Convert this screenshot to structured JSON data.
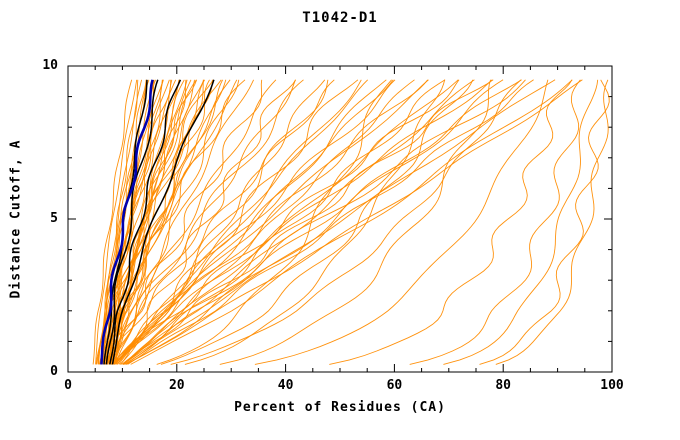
{
  "chart_data": {
    "type": "line",
    "title": "T1042-D1",
    "xlabel": "Percent of Residues (CA)",
    "ylabel": "Distance Cutoff, A",
    "xlim": [
      0,
      100
    ],
    "ylim": [
      0,
      10
    ],
    "x_ticks": [
      0,
      20,
      40,
      60,
      80,
      100
    ],
    "y_ticks": [
      0,
      5,
      10
    ],
    "x_minor_step": 5,
    "y_minor_step": 1,
    "grid": false,
    "legend": "none",
    "colors": {
      "models": "#FF8C00",
      "highlight": "#000000",
      "reference": "#0000B0",
      "axis": "#000000",
      "background": "#FFFFFF"
    },
    "wiggle": {
      "amplitude": 1.1,
      "frequency": 2.6
    },
    "curve_format": [
      "x_at_bottom_percent",
      "x_at_top_percent",
      "shape_power"
    ],
    "series_groups": [
      {
        "name": "predicted-models",
        "color": "#FF8C00",
        "width": 0.9,
        "curves": [
          [
            4.5,
            12,
            1.2
          ],
          [
            5,
            13,
            1.3
          ],
          [
            5.5,
            13.5,
            1.1
          ],
          [
            6,
            14,
            1.35
          ],
          [
            6.5,
            14.5,
            1.15
          ],
          [
            5,
            15,
            1.0
          ],
          [
            6,
            15.5,
            1.3
          ],
          [
            7,
            16,
            1.1
          ],
          [
            7.5,
            16.5,
            1.2
          ],
          [
            5.5,
            17,
            1.4
          ],
          [
            6.5,
            17.5,
            1.05
          ],
          [
            7,
            18,
            1.3
          ],
          [
            8,
            18.5,
            1.15
          ],
          [
            6,
            19,
            1.2
          ],
          [
            7,
            19.5,
            1.35
          ],
          [
            8,
            20,
            1.0
          ],
          [
            5,
            20.5,
            1.2
          ],
          [
            6,
            21,
            1.3
          ],
          [
            7,
            21.5,
            1.1
          ],
          [
            8,
            22,
            1.2
          ],
          [
            8.5,
            22.5,
            1.3
          ],
          [
            6.5,
            23,
            1.05
          ],
          [
            7.5,
            23.5,
            1.2
          ],
          [
            8,
            24,
            1.4
          ],
          [
            5.5,
            24.5,
            1.1
          ],
          [
            6,
            25,
            1.3
          ],
          [
            7,
            25.5,
            1.2
          ],
          [
            8,
            26,
            1.0
          ],
          [
            8.5,
            26.5,
            1.25
          ],
          [
            6.5,
            27,
            1.3
          ],
          [
            7.5,
            27.5,
            1.1
          ],
          [
            8,
            28,
            1.2
          ],
          [
            5.5,
            29,
            1.35
          ],
          [
            6,
            30,
            1.05
          ],
          [
            7,
            30.5,
            1.2
          ],
          [
            7.5,
            31,
            1.3
          ],
          [
            8.5,
            32,
            1.1
          ],
          [
            6,
            33,
            1.2
          ],
          [
            7,
            34,
            1.3
          ],
          [
            8,
            35,
            1.15
          ],
          [
            6,
            38,
            1.0
          ],
          [
            7,
            40,
            1.1
          ],
          [
            8,
            42,
            0.95
          ],
          [
            6.5,
            44,
            1.05
          ],
          [
            7,
            46,
            1.15
          ],
          [
            8,
            48,
            0.9
          ],
          [
            8.5,
            50,
            1.0
          ],
          [
            6,
            52,
            1.1
          ],
          [
            7,
            54,
            0.95
          ],
          [
            8,
            56,
            1.0
          ],
          [
            8.5,
            58,
            1.1
          ],
          [
            6,
            60,
            0.9
          ],
          [
            7,
            62,
            1.0
          ],
          [
            8,
            64,
            1.1
          ],
          [
            8.5,
            66,
            0.95
          ],
          [
            6.5,
            68,
            1.0
          ],
          [
            7,
            70,
            1.1
          ],
          [
            8,
            72,
            0.9
          ],
          [
            8.5,
            74,
            1.0
          ],
          [
            7,
            76,
            1.05
          ],
          [
            8,
            78,
            0.95
          ],
          [
            8.5,
            80,
            1.0
          ],
          [
            7,
            82,
            1.1
          ],
          [
            8,
            84,
            0.9
          ],
          [
            8.5,
            86,
            1.0
          ],
          [
            8,
            88,
            1.05
          ],
          [
            8.5,
            90,
            0.95
          ],
          [
            8,
            93,
            1.0
          ],
          [
            8.5,
            96,
            0.9
          ],
          [
            8,
            99,
            0.95
          ],
          [
            6,
            60,
            0.45
          ],
          [
            7,
            70,
            0.4
          ],
          [
            8,
            80,
            0.35
          ],
          [
            6.5,
            85,
            0.5
          ],
          [
            8.5,
            75,
            0.55
          ],
          [
            7,
            90,
            0.3
          ],
          [
            5,
            95,
            0.12
          ],
          [
            6,
            97,
            0.1
          ],
          [
            7,
            99,
            0.08
          ],
          [
            6,
            100,
            0.07
          ],
          [
            8,
            92,
            0.2
          ]
        ]
      },
      {
        "name": "highlight-models",
        "color": "#000000",
        "width": 1.5,
        "curves": [
          [
            6.5,
            15,
            1.1
          ],
          [
            7,
            17.5,
            1.25
          ],
          [
            7.5,
            21,
            1.2
          ],
          [
            8,
            28,
            1.35
          ]
        ]
      },
      {
        "name": "reference-model",
        "color": "#0000B0",
        "width": 2.6,
        "curves": [
          [
            6,
            16.5,
            1.25
          ]
        ]
      }
    ]
  }
}
